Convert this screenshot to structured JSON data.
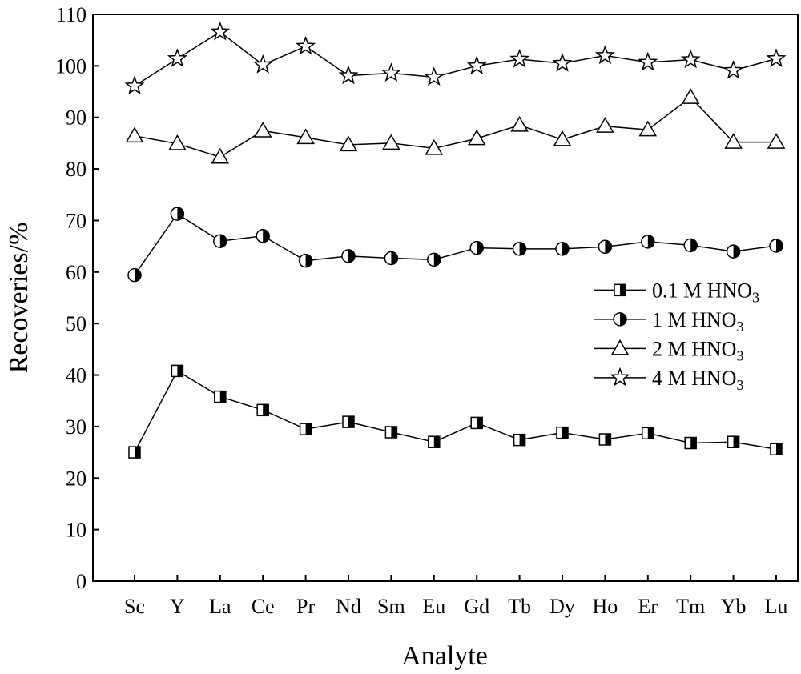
{
  "chart_data": {
    "type": "line",
    "xlabel": "Analyte",
    "ylabel": "Recoveries/%",
    "ylim": [
      0,
      110
    ],
    "yticks": [
      0,
      10,
      20,
      30,
      40,
      50,
      60,
      70,
      80,
      90,
      100,
      110
    ],
    "categories": [
      "Sc",
      "Y",
      "La",
      "Ce",
      "Pr",
      "Nd",
      "Sm",
      "Eu",
      "Gd",
      "Tb",
      "Dy",
      "Ho",
      "Er",
      "Tm",
      "Yb",
      "Lu"
    ],
    "legend_position": "right",
    "series": [
      {
        "name": "0.1 M HNO",
        "subscript": "3",
        "marker": "half-square",
        "values": [
          25.0,
          40.8,
          35.8,
          33.2,
          29.5,
          30.9,
          28.9,
          27.0,
          30.7,
          27.4,
          28.8,
          27.5,
          28.7,
          26.8,
          27.0,
          25.6
        ]
      },
      {
        "name": "1 M HNO",
        "subscript": "3",
        "marker": "half-circle",
        "values": [
          59.4,
          71.3,
          66.0,
          67.0,
          62.2,
          63.1,
          62.7,
          62.4,
          64.7,
          64.5,
          64.5,
          64.9,
          65.9,
          65.2,
          64.0,
          65.1
        ]
      },
      {
        "name": "2 M HNO",
        "subscript": "3",
        "marker": "triangle",
        "values": [
          86.4,
          84.9,
          82.3,
          87.4,
          86.1,
          84.7,
          85.0,
          84.0,
          85.9,
          88.5,
          85.7,
          88.3,
          87.6,
          93.9,
          85.2,
          85.2
        ]
      },
      {
        "name": "4 M HNO",
        "subscript": "3",
        "marker": "star",
        "values": [
          96.1,
          101.4,
          106.6,
          100.2,
          103.8,
          98.1,
          98.6,
          97.8,
          100.0,
          101.3,
          100.5,
          102.0,
          100.7,
          101.2,
          99.1,
          101.4
        ]
      }
    ]
  }
}
